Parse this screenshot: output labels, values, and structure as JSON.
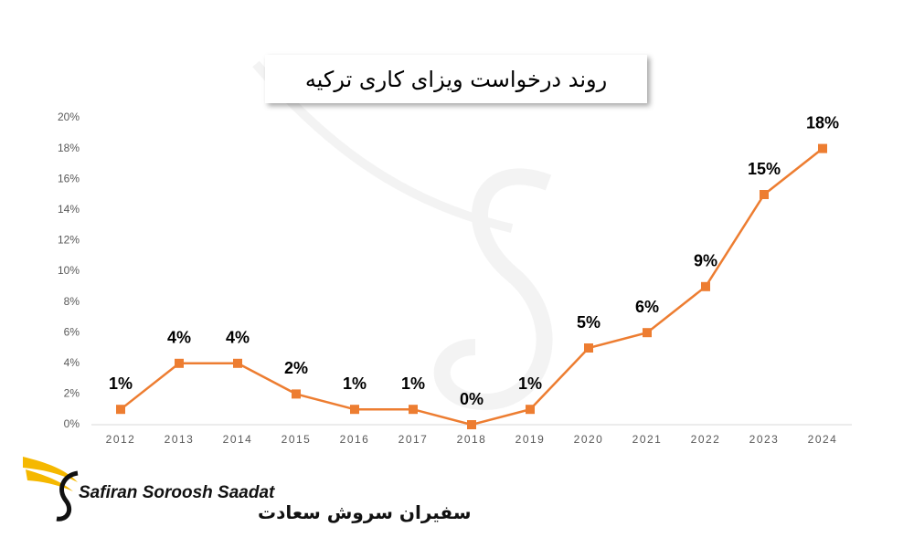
{
  "chart_data": {
    "type": "line",
    "title": "روند درخواست ویزای کاری ترکیه",
    "categories": [
      "2012",
      "2013",
      "2014",
      "2015",
      "2016",
      "2017",
      "2018",
      "2019",
      "2020",
      "2021",
      "2022",
      "2023",
      "2024"
    ],
    "values": [
      1,
      4,
      4,
      2,
      1,
      1,
      0,
      1,
      5,
      6,
      9,
      15,
      18
    ],
    "value_labels": [
      "1%",
      "4%",
      "4%",
      "2%",
      "1%",
      "1%",
      "0%",
      "1%",
      "5%",
      "6%",
      "9%",
      "15%",
      "18%"
    ],
    "color": "#ed7d31",
    "ylim": [
      0,
      20
    ],
    "yticks": [
      {
        "value": 0,
        "label": "0%"
      },
      {
        "value": 2,
        "label": "2%"
      },
      {
        "value": 4,
        "label": "4%"
      },
      {
        "value": 6,
        "label": "6%"
      },
      {
        "value": 8,
        "label": "8%"
      },
      {
        "value": 10,
        "label": "10%"
      },
      {
        "value": 12,
        "label": "12%"
      },
      {
        "value": 14,
        "label": "14%"
      },
      {
        "value": 16,
        "label": "16%"
      },
      {
        "value": 18,
        "label": "18%"
      },
      {
        "value": 20,
        "label": "20%"
      }
    ],
    "grid": false
  },
  "logo": {
    "name_en": "Safiran Soroosh Saadat",
    "name_fa": "سفیران سروش سعادت"
  }
}
